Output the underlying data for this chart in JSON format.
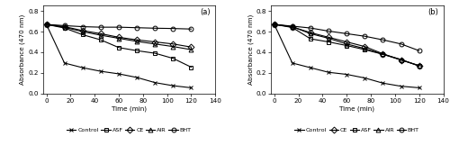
{
  "time": [
    0,
    15,
    30,
    45,
    60,
    75,
    90,
    105,
    120
  ],
  "panel_a": {
    "title": "(a)",
    "Control": [
      0.67,
      0.295,
      0.25,
      0.215,
      0.19,
      0.155,
      0.105,
      0.075,
      0.055
    ],
    "ASF": [
      0.67,
      0.635,
      0.57,
      0.52,
      0.445,
      0.415,
      0.39,
      0.34,
      0.255
    ],
    "CE": [
      0.67,
      0.648,
      0.61,
      0.58,
      0.545,
      0.52,
      0.5,
      0.48,
      0.45
    ],
    "AIR": [
      0.67,
      0.642,
      0.6,
      0.565,
      0.535,
      0.505,
      0.48,
      0.455,
      0.425
    ],
    "BHT": [
      0.67,
      0.658,
      0.648,
      0.643,
      0.643,
      0.638,
      0.633,
      0.63,
      0.625
    ],
    "legend_order": [
      "Control",
      "ASF",
      "CE",
      "AIR",
      "BHT"
    ]
  },
  "panel_b": {
    "title": "(b)",
    "Control": [
      0.67,
      0.295,
      0.25,
      0.205,
      0.185,
      0.15,
      0.1,
      0.07,
      0.055
    ],
    "CE": [
      0.67,
      0.645,
      0.59,
      0.545,
      0.5,
      0.455,
      0.385,
      0.325,
      0.27
    ],
    "ASF": [
      0.67,
      0.64,
      0.53,
      0.5,
      0.465,
      0.425,
      0.38,
      0.325,
      0.27
    ],
    "AIR": [
      0.67,
      0.648,
      0.58,
      0.535,
      0.48,
      0.435,
      0.38,
      0.33,
      0.265
    ],
    "BHT": [
      0.67,
      0.653,
      0.635,
      0.605,
      0.58,
      0.555,
      0.52,
      0.48,
      0.415
    ],
    "legend_order": [
      "Control",
      "CE",
      "ASF",
      "AIR",
      "BHT"
    ]
  },
  "markers": {
    "Control": {
      "marker": "x",
      "ms": 3.5,
      "mfc": "black"
    },
    "ASF": {
      "marker": "s",
      "ms": 3.5,
      "mfc": "none"
    },
    "CE": {
      "marker": "D",
      "ms": 3.5,
      "mfc": "none"
    },
    "AIR": {
      "marker": "^",
      "ms": 3.5,
      "mfc": "none"
    },
    "BHT": {
      "marker": "o",
      "ms": 3.5,
      "mfc": "none"
    }
  },
  "ylim": [
    0,
    0.85
  ],
  "yticks": [
    0.0,
    0.2,
    0.4,
    0.6,
    0.8
  ],
  "xlim": [
    -3,
    137
  ],
  "xticks": [
    0,
    20,
    40,
    60,
    80,
    100,
    120,
    140
  ],
  "xlabel": "Time (min)",
  "ylabel": "Absorbance (470 nm)",
  "color": "black",
  "linewidth": 0.8,
  "fontsize": 5.2,
  "title_fontsize": 6.0,
  "legend_fontsize": 4.6
}
